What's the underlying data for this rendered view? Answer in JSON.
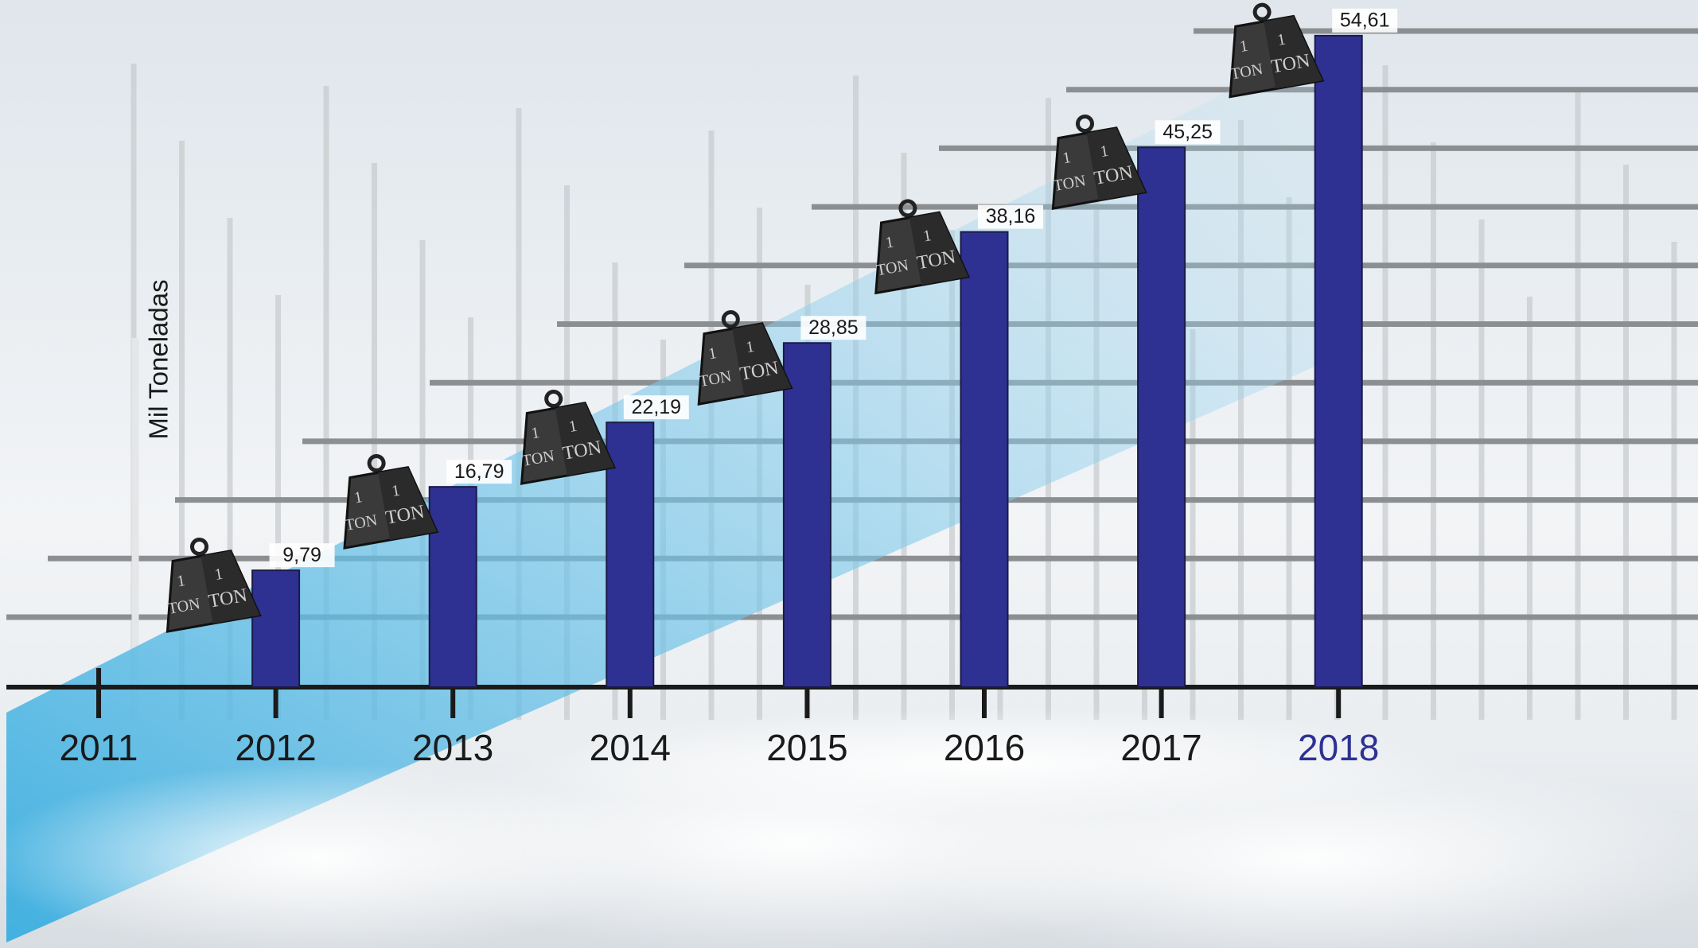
{
  "chart_data": {
    "type": "bar",
    "y_label": "Mil Toneladas",
    "categories": [
      "2011",
      "2012",
      "2013",
      "2014",
      "2015",
      "2016",
      "2017",
      "2018"
    ],
    "values": [
      null,
      9.79,
      16.79,
      22.19,
      28.85,
      38.16,
      45.25,
      54.61
    ],
    "value_labels": [
      null,
      "9,79",
      "16,79",
      "22,19",
      "28,85",
      "38,16",
      "45,25",
      "54,61"
    ],
    "color": "#2e3192",
    "tick_label_colors": [
      "#1a1a1a",
      "#1a1a1a",
      "#1a1a1a",
      "#1a1a1a",
      "#1a1a1a",
      "#1a1a1a",
      "#1a1a1a",
      "#2e3192"
    ],
    "ylim": [
      0,
      57.6
    ],
    "marker_label": {
      "number": "1",
      "unit": "TON"
    }
  }
}
